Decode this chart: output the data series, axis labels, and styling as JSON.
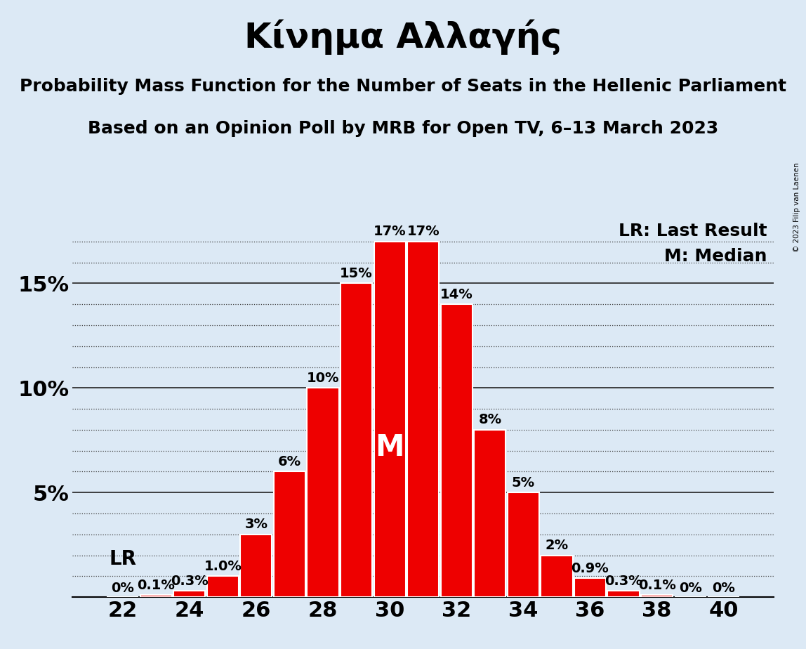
{
  "title": "Κίνημα Αλλαγής",
  "subtitle1": "Probability Mass Function for the Number of Seats in the Hellenic Parliament",
  "subtitle2": "Based on an Opinion Poll by MRB for Open TV, 6–13 March 2023",
  "copyright": "© 2023 Filip van Laenen",
  "categories": [
    22,
    23,
    24,
    25,
    26,
    27,
    28,
    29,
    30,
    31,
    32,
    33,
    34,
    35,
    36,
    37,
    38,
    39,
    40
  ],
  "values": [
    0.0,
    0.1,
    0.3,
    1.0,
    3.0,
    6.0,
    10.0,
    15.0,
    17.0,
    17.0,
    14.0,
    8.0,
    5.0,
    2.0,
    0.9,
    0.3,
    0.1,
    0.0,
    0.0
  ],
  "labels": [
    "0%",
    "0.1%",
    "0.3%",
    "1.0%",
    "3%",
    "6%",
    "10%",
    "15%",
    "17%",
    "17%",
    "14%",
    "8%",
    "5%",
    "2%",
    "0.9%",
    "0.3%",
    "0.1%",
    "0%",
    "0%"
  ],
  "bar_color": "#ee0000",
  "bg_color": "#dce9f5",
  "bar_edge_color": "#ffffff",
  "median_seat": 30,
  "last_result_seat": 23,
  "ylim": [
    0,
    18
  ],
  "yticks": [
    0,
    5,
    10,
    15
  ],
  "ytick_labels": [
    "",
    "5%",
    "10%",
    "15%"
  ],
  "xticks": [
    22,
    24,
    26,
    28,
    30,
    32,
    34,
    36,
    38,
    40
  ],
  "legend_lr": "LR: Last Result",
  "legend_m": "M: Median",
  "title_fontsize": 36,
  "subtitle_fontsize": 18,
  "axis_fontsize": 22,
  "bar_label_fontsize": 14,
  "legend_fontsize": 18
}
